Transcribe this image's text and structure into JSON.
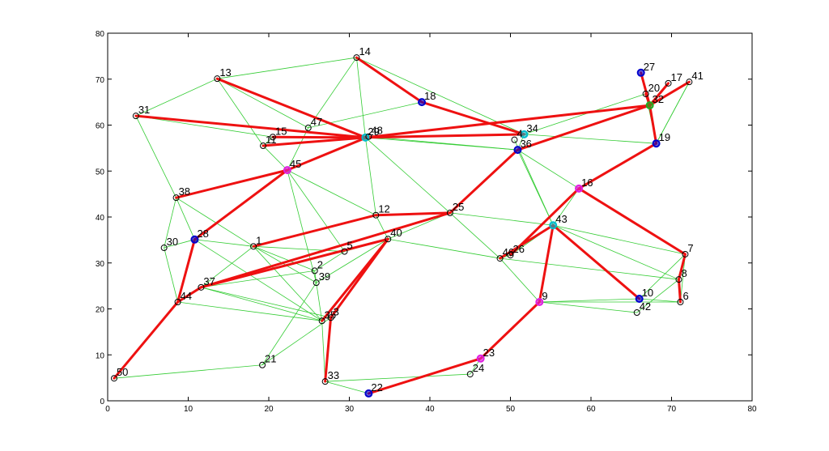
{
  "chart_data": {
    "type": "network",
    "xlim": [
      0,
      80
    ],
    "ylim": [
      0,
      80
    ],
    "xticks": [
      0,
      10,
      20,
      30,
      40,
      50,
      60,
      70,
      80
    ],
    "yticks": [
      0,
      10,
      20,
      30,
      40,
      50,
      60,
      70,
      80
    ],
    "nodes": [
      {
        "label": "14",
        "x": 30.9,
        "y": 74.7,
        "color": "#000000"
      },
      {
        "label": "18",
        "x": 39.0,
        "y": 65.0,
        "color": "#0000cc"
      },
      {
        "label": "13",
        "x": 13.6,
        "y": 70.1,
        "color": "#000000"
      },
      {
        "label": "31",
        "x": 3.5,
        "y": 62.0,
        "color": "#000000"
      },
      {
        "label": "27",
        "x": 66.2,
        "y": 71.4,
        "color": "#0000cc"
      },
      {
        "label": "17",
        "x": 69.6,
        "y": 69.1,
        "color": "#000000"
      },
      {
        "label": "41",
        "x": 72.2,
        "y": 69.4,
        "color": "#000000"
      },
      {
        "label": "20",
        "x": 66.8,
        "y": 66.8,
        "color": "#000000"
      },
      {
        "label": "32",
        "x": 67.3,
        "y": 64.3,
        "color": "#22aa22"
      },
      {
        "label": "19",
        "x": 68.1,
        "y": 56.0,
        "color": "#0000cc"
      },
      {
        "label": "15",
        "x": 20.5,
        "y": 57.4,
        "color": "#000000"
      },
      {
        "label": "47",
        "x": 24.9,
        "y": 59.4,
        "color": "#000000"
      },
      {
        "label": "11",
        "x": 19.3,
        "y": 55.5,
        "color": "#000000"
      },
      {
        "label": "29",
        "x": 32.0,
        "y": 57.3,
        "color": "#00bbcc"
      },
      {
        "label": "48",
        "x": 32.4,
        "y": 57.5,
        "color": "#000000"
      },
      {
        "label": "34",
        "x": 51.7,
        "y": 58.0,
        "color": "#00bbcc"
      },
      {
        "label": "4",
        "x": 50.5,
        "y": 56.8,
        "color": "#000000"
      },
      {
        "label": "36",
        "x": 50.9,
        "y": 54.6,
        "color": "#0000cc"
      },
      {
        "label": "45",
        "x": 22.3,
        "y": 50.2,
        "color": "#e020e0"
      },
      {
        "label": "38",
        "x": 8.5,
        "y": 44.2,
        "color": "#000000"
      },
      {
        "label": "12",
        "x": 33.3,
        "y": 40.4,
        "color": "#000000"
      },
      {
        "label": "25",
        "x": 42.5,
        "y": 40.9,
        "color": "#000000"
      },
      {
        "label": "16",
        "x": 58.5,
        "y": 46.2,
        "color": "#e020e0"
      },
      {
        "label": "43",
        "x": 55.3,
        "y": 38.2,
        "color": "#00bbcc"
      },
      {
        "label": "28",
        "x": 10.8,
        "y": 35.1,
        "color": "#0000cc"
      },
      {
        "label": "30",
        "x": 7.0,
        "y": 33.3,
        "color": "#000000"
      },
      {
        "label": "1",
        "x": 18.1,
        "y": 33.6,
        "color": "#000000"
      },
      {
        "label": "5",
        "x": 29.4,
        "y": 32.5,
        "color": "#000000"
      },
      {
        "label": "40",
        "x": 34.8,
        "y": 35.2,
        "color": "#000000"
      },
      {
        "label": "2",
        "x": 25.7,
        "y": 28.3,
        "color": "#000000"
      },
      {
        "label": "39",
        "x": 25.9,
        "y": 25.7,
        "color": "#000000"
      },
      {
        "label": "46",
        "x": 48.7,
        "y": 31.0,
        "color": "#000000"
      },
      {
        "label": "26",
        "x": 50.0,
        "y": 31.7,
        "color": "#000000"
      },
      {
        "label": "37",
        "x": 11.6,
        "y": 24.7,
        "color": "#000000"
      },
      {
        "label": "44",
        "x": 8.7,
        "y": 21.5,
        "color": "#000000"
      },
      {
        "label": "9",
        "x": 53.6,
        "y": 21.5,
        "color": "#e020e0"
      },
      {
        "label": "10",
        "x": 66.0,
        "y": 22.2,
        "color": "#0000cc"
      },
      {
        "label": "42",
        "x": 65.7,
        "y": 19.2,
        "color": "#000000"
      },
      {
        "label": "8",
        "x": 70.9,
        "y": 26.4,
        "color": "#000000"
      },
      {
        "label": "6",
        "x": 71.1,
        "y": 21.5,
        "color": "#000000"
      },
      {
        "label": "7",
        "x": 71.7,
        "y": 31.9,
        "color": "#000000"
      },
      {
        "label": "35",
        "x": 26.6,
        "y": 17.4,
        "color": "#000000"
      },
      {
        "label": "3",
        "x": 27.7,
        "y": 18.1,
        "color": "#000000"
      },
      {
        "label": "23",
        "x": 46.3,
        "y": 9.2,
        "color": "#e020e0"
      },
      {
        "label": "24",
        "x": 45.0,
        "y": 5.8,
        "color": "#000000"
      },
      {
        "label": "21",
        "x": 19.2,
        "y": 7.8,
        "color": "#000000"
      },
      {
        "label": "50",
        "x": 0.8,
        "y": 4.9,
        "color": "#000000"
      },
      {
        "label": "33",
        "x": 27.0,
        "y": 4.2,
        "color": "#000000"
      },
      {
        "label": "22",
        "x": 32.4,
        "y": 1.6,
        "color": "#0000cc"
      }
    ],
    "edge_sets": [
      {
        "color": "#33cc33",
        "bold": false,
        "pairs": [
          [
            3,
            2
          ],
          [
            3,
            10
          ],
          [
            3,
            19
          ],
          [
            2,
            0
          ],
          [
            2,
            12
          ],
          [
            2,
            11
          ],
          [
            0,
            11
          ],
          [
            0,
            13
          ],
          [
            0,
            15
          ],
          [
            11,
            1
          ],
          [
            11,
            18
          ],
          [
            12,
            18
          ],
          [
            10,
            12
          ],
          [
            13,
            20
          ],
          [
            14,
            17
          ],
          [
            13,
            21
          ],
          [
            18,
            20
          ],
          [
            18,
            27
          ],
          [
            18,
            30
          ],
          [
            19,
            24
          ],
          [
            19,
            25
          ],
          [
            19,
            26
          ],
          [
            25,
            24
          ],
          [
            25,
            34
          ],
          [
            24,
            26
          ],
          [
            26,
            27
          ],
          [
            26,
            30
          ],
          [
            26,
            41
          ],
          [
            26,
            33
          ],
          [
            27,
            29
          ],
          [
            27,
            28
          ],
          [
            29,
            30
          ],
          [
            30,
            41
          ],
          [
            33,
            41
          ],
          [
            33,
            42
          ],
          [
            34,
            41
          ],
          [
            24,
            41
          ],
          [
            45,
            30
          ],
          [
            45,
            46
          ],
          [
            45,
            42
          ],
          [
            47,
            44
          ],
          [
            48,
            47
          ],
          [
            44,
            43
          ],
          [
            47,
            41
          ],
          [
            28,
            31
          ],
          [
            21,
            31
          ],
          [
            21,
            23
          ],
          [
            20,
            28
          ],
          [
            15,
            17
          ],
          [
            15,
            9
          ],
          [
            16,
            23
          ],
          [
            17,
            23
          ],
          [
            17,
            22
          ],
          [
            22,
            23
          ],
          [
            23,
            40
          ],
          [
            23,
            38
          ],
          [
            35,
            37
          ],
          [
            35,
            39
          ],
          [
            35,
            36
          ],
          [
            36,
            39
          ],
          [
            37,
            38
          ],
          [
            40,
            39
          ],
          [
            31,
            35
          ],
          [
            31,
            32
          ],
          [
            32,
            23
          ],
          [
            9,
            6
          ],
          [
            4,
            7
          ],
          [
            7,
            9
          ],
          [
            6,
            9
          ],
          [
            15,
            7
          ],
          [
            21,
            28
          ],
          [
            29,
            33
          ],
          [
            26,
            29
          ],
          [
            20,
            26
          ],
          [
            28,
            30
          ],
          [
            31,
            38
          ],
          [
            17,
            13
          ],
          [
            14,
            15
          ],
          [
            36,
            40
          ]
        ]
      },
      {
        "color": "#ee1111",
        "bold": true,
        "pairs": [
          [
            0,
            1
          ],
          [
            1,
            15
          ],
          [
            2,
            13
          ],
          [
            3,
            13
          ],
          [
            10,
            13
          ],
          [
            12,
            13
          ],
          [
            18,
            14
          ],
          [
            13,
            15
          ],
          [
            19,
            18
          ],
          [
            24,
            18
          ],
          [
            4,
            8
          ],
          [
            5,
            8
          ],
          [
            6,
            8
          ],
          [
            7,
            8
          ],
          [
            8,
            9
          ],
          [
            8,
            17
          ],
          [
            8,
            13
          ],
          [
            9,
            22
          ],
          [
            22,
            40
          ],
          [
            40,
            38
          ],
          [
            38,
            39
          ],
          [
            22,
            32
          ],
          [
            23,
            31
          ],
          [
            23,
            36
          ],
          [
            23,
            35
          ],
          [
            35,
            43
          ],
          [
            43,
            48
          ],
          [
            26,
            20
          ],
          [
            20,
            21
          ],
          [
            21,
            17
          ],
          [
            21,
            33
          ],
          [
            28,
            33
          ],
          [
            28,
            41
          ],
          [
            28,
            42
          ],
          [
            42,
            47
          ],
          [
            34,
            24
          ],
          [
            34,
            46
          ],
          [
            34,
            33
          ]
        ]
      }
    ]
  }
}
